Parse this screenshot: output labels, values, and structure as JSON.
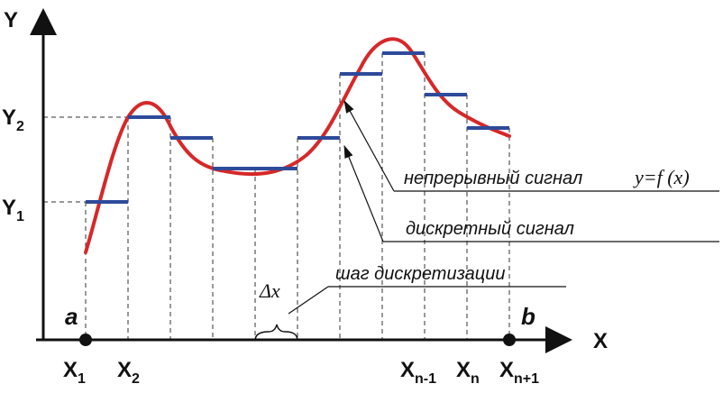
{
  "diagram": {
    "y_axis_label": "Y",
    "x_axis_label": "X",
    "y_ticks": [
      {
        "base": "Y",
        "sub": "2"
      },
      {
        "base": "Y",
        "sub": "1"
      }
    ],
    "x_ticks": [
      {
        "base": "X",
        "sub": "1"
      },
      {
        "base": "X",
        "sub": "2"
      },
      {
        "base": "X",
        "sub": "n-1"
      },
      {
        "base": "X",
        "sub": "n"
      },
      {
        "base": "X",
        "sub": "n+1"
      }
    ],
    "endpoint_a": "a",
    "endpoint_b": "b",
    "delta_label": "Δx",
    "annotations": {
      "continuous": "непрерывный сигнал",
      "continuous_formula": "y=f (x)",
      "discrete": "дискретный сигнал",
      "step": "шаг дискретизации"
    },
    "colors": {
      "continuous": "#d62828",
      "discrete": "#2e4a9a",
      "axis": "#111111",
      "guide": "#333333"
    }
  }
}
